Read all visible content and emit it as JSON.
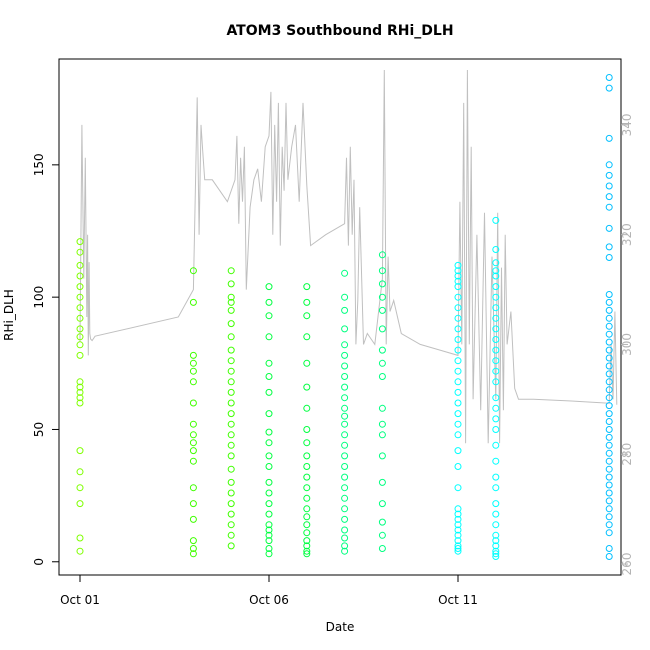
{
  "chart_data": {
    "type": "scatter",
    "title": "ATOM3 Southbound RHi_DLH",
    "xlabel": "Date",
    "ylabel": "RHi_DLH",
    "x_range_days": [
      0.0,
      15.0
    ],
    "x_tick_labels": [
      "Oct 01",
      "Oct 06",
      "Oct 11"
    ],
    "x_tick_days": [
      0,
      5,
      10
    ],
    "ylim": [
      -5,
      190
    ],
    "y_ticks": [
      0,
      50,
      100,
      150
    ],
    "y2_ylim": [
      258,
      352
    ],
    "y2_ticks": [
      260,
      280,
      300,
      320,
      340
    ],
    "grid": false,
    "legend": "none",
    "colors": {
      "line": "#c0c0c0",
      "axes": "#000000",
      "right_axis": "#b4b4b4"
    },
    "series": [
      {
        "kind": "points",
        "color": "#7fff00",
        "x": [
          0.0,
          0.0,
          0.0,
          0.0,
          0.0,
          0.0,
          0.0,
          0.0,
          0.0,
          0.0,
          0.0,
          0.0,
          0.0,
          0.0,
          0.0,
          0.0,
          0.0,
          0.0,
          0.0,
          0.0,
          0.0,
          0.0,
          0.0
        ],
        "y": [
          121,
          117,
          112,
          108,
          104,
          100,
          96,
          92,
          88,
          85,
          82,
          78,
          68,
          66,
          64,
          62,
          60,
          42,
          34,
          28,
          22,
          9,
          4
        ]
      },
      {
        "kind": "points",
        "color": "#40ff00",
        "x": [
          3.0,
          3.0,
          3.0,
          3.0,
          3.0,
          3.0,
          3.0,
          3.0,
          3.0,
          3.0,
          3.0,
          3.0,
          3.0,
          3.0,
          3.0,
          3.0,
          3.0,
          3.0,
          4.0,
          4.0,
          4.0,
          4.0,
          4.0,
          4.0,
          4.0,
          4.0,
          4.0,
          4.0,
          4.0,
          4.0,
          4.0,
          4.0,
          4.0,
          4.0,
          4.0,
          4.0,
          4.0,
          4.0,
          4.0,
          4.0,
          4.0,
          4.0,
          4.0,
          4.0
        ],
        "y": [
          110,
          98,
          78,
          75,
          72,
          68,
          60,
          52,
          48,
          45,
          42,
          38,
          28,
          22,
          16,
          8,
          5,
          3,
          110,
          105,
          100,
          98,
          95,
          90,
          85,
          80,
          76,
          72,
          68,
          64,
          60,
          56,
          52,
          48,
          44,
          40,
          35,
          30,
          26,
          22,
          18,
          14,
          10,
          6
        ]
      },
      {
        "kind": "points",
        "color": "#00ff40",
        "x": [
          5.0,
          5.0,
          5.0,
          5.0,
          5.0,
          5.0,
          5.0,
          5.0,
          5.0,
          5.0,
          5.0,
          5.0,
          5.0,
          5.0,
          5.0,
          5.0,
          5.0,
          5.0,
          5.0,
          5.0,
          5.0,
          5.0,
          6.0,
          6.0,
          6.0,
          6.0,
          6.0,
          6.0,
          6.0,
          6.0,
          6.0,
          6.0,
          6.0,
          6.0,
          6.0,
          6.0,
          6.0,
          6.0,
          6.0,
          6.0,
          6.0,
          6.0,
          6.0,
          6.0
        ],
        "y": [
          104,
          98,
          93,
          85,
          75,
          70,
          64,
          56,
          49,
          45,
          40,
          36,
          30,
          26,
          22,
          18,
          14,
          12,
          10,
          8,
          5,
          3,
          104,
          98,
          93,
          85,
          75,
          66,
          58,
          50,
          45,
          40,
          36,
          32,
          28,
          24,
          20,
          17,
          14,
          11,
          8,
          6,
          4,
          3
        ]
      },
      {
        "kind": "points",
        "color": "#00ff80",
        "x": [
          7.0,
          7.0,
          7.0,
          7.0,
          7.0,
          7.0,
          7.0,
          7.0,
          7.0,
          7.0,
          7.0,
          7.0,
          7.0,
          7.0,
          7.0,
          7.0,
          7.0,
          7.0,
          7.0,
          7.0,
          7.0,
          7.0,
          7.0,
          7.0,
          7.0,
          7.0,
          8.0,
          8.0,
          8.0,
          8.0,
          8.0,
          8.0,
          8.0,
          8.0,
          8.0,
          8.0,
          8.0,
          8.0,
          8.0,
          8.0,
          8.0,
          8.0,
          8.0,
          8.0
        ],
        "y": [
          109,
          100,
          95,
          88,
          82,
          78,
          74,
          70,
          66,
          62,
          58,
          55,
          52,
          48,
          44,
          40,
          36,
          32,
          28,
          24,
          20,
          16,
          12,
          9,
          6,
          4,
          116,
          110,
          105,
          100,
          95,
          88,
          80,
          75,
          70,
          58,
          52,
          48,
          40,
          30,
          22,
          15,
          10,
          5
        ]
      },
      {
        "kind": "points",
        "color": "#00ffff",
        "x": [
          10.0,
          10.0,
          10.0,
          10.0,
          10.0,
          10.0,
          10.0,
          10.0,
          10.0,
          10.0,
          10.0,
          10.0,
          10.0,
          10.0,
          10.0,
          10.0,
          10.0,
          10.0,
          10.0,
          10.0,
          10.0,
          10.0,
          10.0,
          10.0,
          10.0,
          10.0,
          10.0,
          10.0,
          10.0,
          10.0,
          10.0,
          10.0,
          11.0,
          11.0,
          11.0,
          11.0,
          11.0,
          11.0,
          11.0,
          11.0,
          11.0,
          11.0,
          11.0,
          11.0,
          11.0,
          11.0,
          11.0,
          11.0,
          11.0,
          11.0,
          11.0,
          11.0,
          11.0,
          11.0,
          11.0,
          11.0,
          11.0,
          11.0,
          11.0,
          11.0,
          11.0,
          11.0,
          11.0,
          11.0
        ],
        "y": [
          112,
          110,
          108,
          106,
          104,
          100,
          96,
          92,
          88,
          84,
          80,
          76,
          72,
          68,
          64,
          60,
          56,
          52,
          48,
          42,
          36,
          28,
          20,
          18,
          16,
          14,
          12,
          10,
          8,
          6,
          5,
          4,
          129,
          118,
          113,
          110,
          108,
          104,
          100,
          96,
          92,
          88,
          84,
          80,
          76,
          72,
          68,
          62,
          58,
          54,
          50,
          44,
          38,
          32,
          28,
          22,
          18,
          14,
          10,
          8,
          6,
          4,
          3,
          2
        ]
      },
      {
        "kind": "points",
        "color": "#00bfff",
        "x": [
          14.0,
          14.0,
          14.0,
          14.0,
          14.0,
          14.0,
          14.0,
          14.0,
          14.0,
          14.0,
          14.0,
          14.0,
          14.0,
          14.0,
          14.0,
          14.0,
          14.0,
          14.0,
          14.0,
          14.0,
          14.0,
          14.0,
          14.0,
          14.0,
          14.0,
          14.0,
          14.0,
          14.0,
          14.0,
          14.0,
          14.0,
          14.0,
          14.0,
          14.0,
          14.0,
          14.0,
          14.0,
          14.0,
          14.0,
          14.0,
          14.0,
          14.0,
          14.0,
          14.0
        ],
        "y": [
          183,
          179,
          160,
          150,
          146,
          142,
          138,
          134,
          126,
          119,
          115,
          101,
          98,
          95,
          92,
          89,
          86,
          83,
          80,
          77,
          74,
          71,
          68,
          65,
          62,
          59,
          56,
          53,
          50,
          47,
          44,
          41,
          38,
          35,
          32,
          29,
          26,
          23,
          20,
          17,
          14,
          11,
          5,
          2
        ]
      },
      {
        "kind": "line",
        "color": "#c0c0c0",
        "axis": "right",
        "x": [
          0.0,
          0.05,
          0.1,
          0.14,
          0.18,
          0.2,
          0.22,
          0.24,
          0.26,
          0.28,
          0.32,
          0.4,
          2.6,
          3.0,
          3.1,
          3.15,
          3.2,
          3.25,
          3.3,
          3.5,
          3.9,
          4.1,
          4.15,
          4.2,
          4.25,
          4.3,
          4.35,
          4.4,
          4.5,
          4.6,
          4.7,
          4.8,
          4.9,
          5.0,
          5.05,
          5.1,
          5.15,
          5.2,
          5.25,
          5.3,
          5.35,
          5.4,
          5.45,
          5.5,
          5.6,
          5.7,
          5.8,
          5.9,
          6.0,
          6.1,
          6.5,
          7.0,
          7.05,
          7.1,
          7.15,
          7.2,
          7.25,
          7.3,
          7.35,
          7.4,
          7.5,
          7.6,
          7.8,
          8.0,
          8.05,
          8.1,
          8.15,
          8.2,
          8.3,
          8.5,
          9.0,
          9.5,
          10.0,
          10.05,
          10.1,
          10.15,
          10.2,
          10.25,
          10.3,
          10.35,
          10.4,
          10.5,
          10.6,
          10.7,
          10.8,
          10.9,
          11.0,
          11.05,
          11.1,
          11.15,
          11.2,
          11.25,
          11.3,
          11.4,
          11.5,
          11.6,
          12.0,
          13.0,
          13.5,
          14.0,
          14.05,
          14.1,
          14.15,
          14.2
        ],
        "y": [
          300.5,
          340,
          312,
          334,
          305,
          320,
          298,
          315,
          302,
          301,
          300.7,
          301.5,
          305,
          310,
          345,
          320,
          340,
          335,
          330,
          330,
          326,
          330,
          338,
          322,
          334,
          326,
          336,
          310,
          325,
          330,
          332,
          326,
          336,
          338,
          346,
          320,
          340,
          326,
          344,
          318,
          336,
          328,
          344,
          330,
          336,
          340,
          326,
          344,
          329,
          318,
          320,
          322,
          334,
          318,
          336,
          320,
          330,
          300,
          308,
          325,
          300,
          302,
          300,
          312,
          350,
          300,
          316,
          306,
          308,
          302,
          300,
          299,
          298,
          326,
          300,
          344,
          282,
          350,
          300,
          336,
          290,
          320,
          288,
          324,
          282,
          316,
          290,
          324,
          282,
          314,
          288,
          320,
          300,
          306,
          292,
          290,
          290,
          289.7,
          289.5,
          289.3,
          300,
          290,
          306,
          289
        ]
      }
    ]
  }
}
